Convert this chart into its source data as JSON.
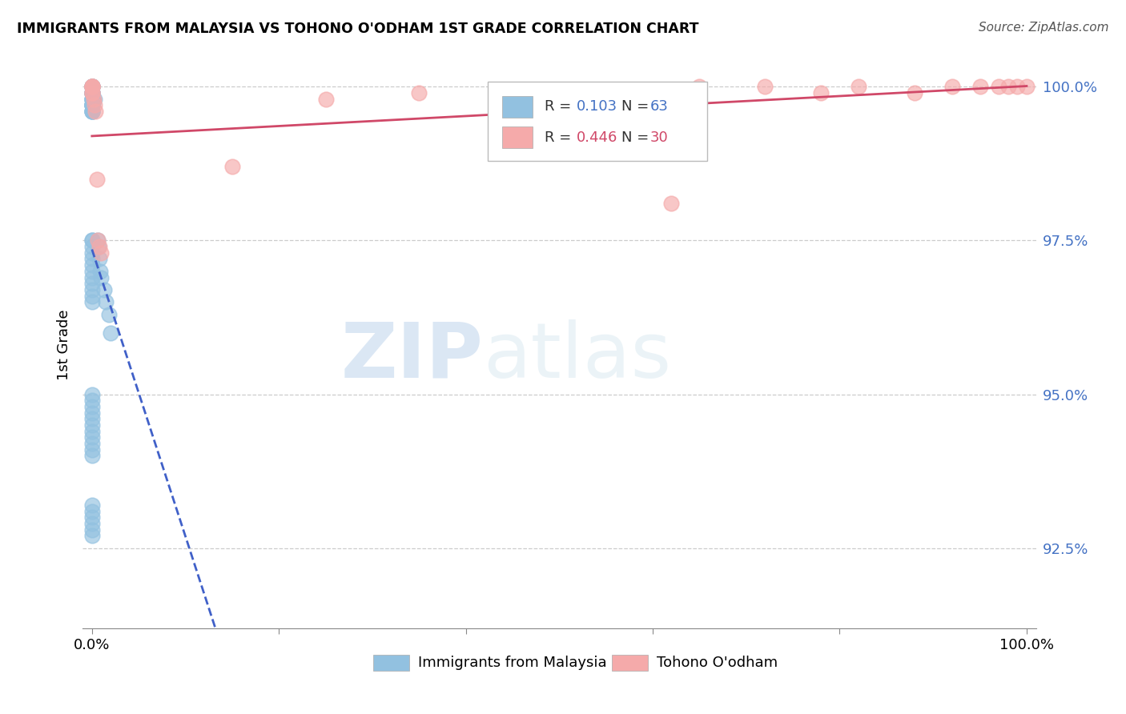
{
  "title": "IMMIGRANTS FROM MALAYSIA VS TOHONO O'ODHAM 1ST GRADE CORRELATION CHART",
  "source": "Source: ZipAtlas.com",
  "ylabel": "1st Grade",
  "ylim": [
    0.912,
    1.004
  ],
  "xlim": [
    -0.01,
    1.01
  ],
  "grid_yticks": [
    0.925,
    0.95,
    0.975,
    1.0
  ],
  "ytick_positions": [
    0.925,
    0.95,
    0.975,
    1.0
  ],
  "ytick_labels": [
    "92.5%",
    "95.0%",
    "97.5%",
    "100.0%"
  ],
  "blue_R": 0.103,
  "blue_N": 63,
  "pink_R": 0.446,
  "pink_N": 30,
  "blue_color": "#92C1E0",
  "pink_color": "#F5AAAA",
  "blue_line_color": "#4060C8",
  "pink_line_color": "#D04868",
  "blue_scatter_x": [
    0.0,
    0.0,
    0.0,
    0.0,
    0.0,
    0.0,
    0.0,
    0.0,
    0.0,
    0.0,
    0.0,
    0.0,
    0.0,
    0.0,
    0.0,
    0.0,
    0.0,
    0.0,
    0.0,
    0.0,
    0.0,
    0.0,
    0.0,
    0.0,
    0.0,
    0.0,
    0.0,
    0.0,
    0.0,
    0.0,
    0.0,
    0.0,
    0.0,
    0.0,
    0.0,
    0.0,
    0.0,
    0.0,
    0.0,
    0.0,
    0.0,
    0.0,
    0.0,
    0.0,
    0.0,
    0.0,
    0.0,
    0.0,
    0.0,
    0.0,
    0.0,
    0.0,
    0.0,
    0.003,
    0.006,
    0.007,
    0.008,
    0.009,
    0.01,
    0.013,
    0.015,
    0.018,
    0.02
  ],
  "blue_scatter_y": [
    1.0,
    1.0,
    1.0,
    1.0,
    1.0,
    0.999,
    0.999,
    0.999,
    0.999,
    0.999,
    0.998,
    0.998,
    0.998,
    0.998,
    0.997,
    0.997,
    0.997,
    0.997,
    0.997,
    0.997,
    0.996,
    0.996,
    0.996,
    0.996,
    0.975,
    0.975,
    0.974,
    0.973,
    0.972,
    0.971,
    0.97,
    0.969,
    0.968,
    0.967,
    0.966,
    0.965,
    0.95,
    0.949,
    0.948,
    0.947,
    0.946,
    0.945,
    0.944,
    0.943,
    0.942,
    0.941,
    0.94,
    0.932,
    0.931,
    0.93,
    0.929,
    0.928,
    0.927,
    0.998,
    0.975,
    0.974,
    0.972,
    0.97,
    0.969,
    0.967,
    0.965,
    0.963,
    0.96
  ],
  "pink_scatter_x": [
    0.0,
    0.0,
    0.0,
    0.0,
    0.0,
    0.0,
    0.002,
    0.003,
    0.004,
    0.005,
    0.006,
    0.008,
    0.01,
    0.15,
    0.62,
    0.25,
    0.35,
    0.45,
    0.55,
    0.65,
    0.72,
    0.78,
    0.82,
    0.88,
    0.92,
    0.95,
    0.97,
    0.98,
    0.99,
    1.0
  ],
  "pink_scatter_y": [
    1.0,
    1.0,
    1.0,
    1.0,
    0.999,
    0.999,
    0.998,
    0.997,
    0.996,
    0.985,
    0.975,
    0.974,
    0.973,
    0.987,
    0.981,
    0.998,
    0.999,
    0.999,
    0.999,
    1.0,
    1.0,
    0.999,
    1.0,
    0.999,
    1.0,
    1.0,
    1.0,
    1.0,
    1.0,
    1.0
  ]
}
